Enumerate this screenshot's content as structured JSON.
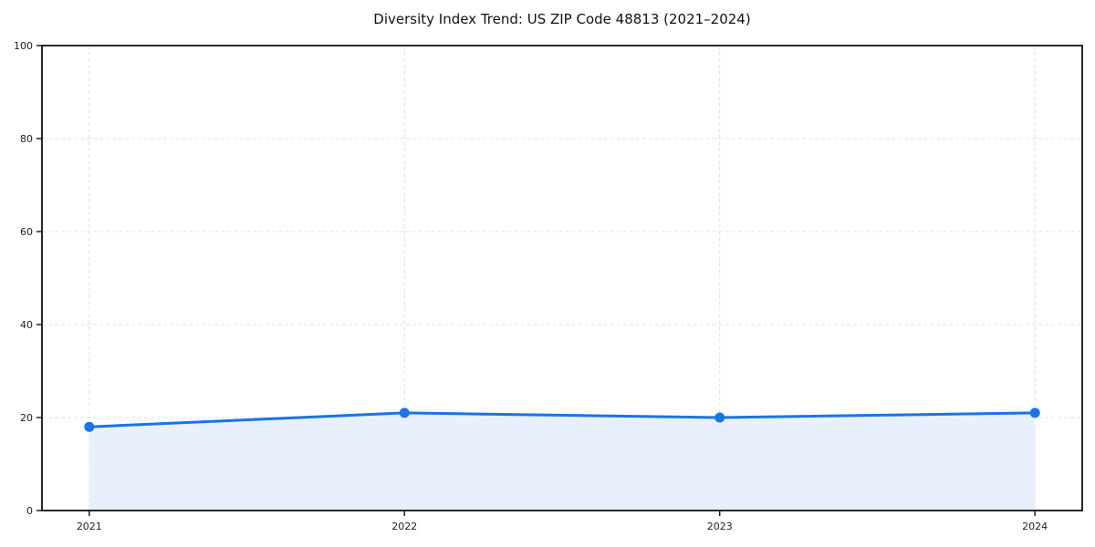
{
  "title": "Diversity Index Trend: US ZIP Code 48813 (2021–2024)",
  "colors": {
    "line": "#1a73e8",
    "marker": "#1a73e8",
    "area_fill": "#e8f0fd",
    "grid": "#e1e1e1",
    "spine": "#111111",
    "tick_text": "#222222",
    "background": "#ffffff"
  },
  "chart_data": {
    "type": "line",
    "title": "Diversity Index Trend: US ZIP Code 48813 (2021–2024)",
    "x": [
      2021,
      2022,
      2023,
      2024
    ],
    "xtick_labels": [
      "2021",
      "2022",
      "2023",
      "2024"
    ],
    "series": [
      {
        "name": "Diversity Index",
        "values": [
          18,
          21,
          20,
          21
        ]
      }
    ],
    "xlabel": "",
    "ylabel": "",
    "ylim": [
      0,
      100
    ],
    "yticks": [
      0,
      20,
      40,
      60,
      80,
      100
    ],
    "ytick_labels": [
      "0",
      "20",
      "40",
      "60",
      "80",
      "100"
    ],
    "grid": "dashed both",
    "area_fill": true,
    "markers": "circle",
    "legend": "none"
  }
}
